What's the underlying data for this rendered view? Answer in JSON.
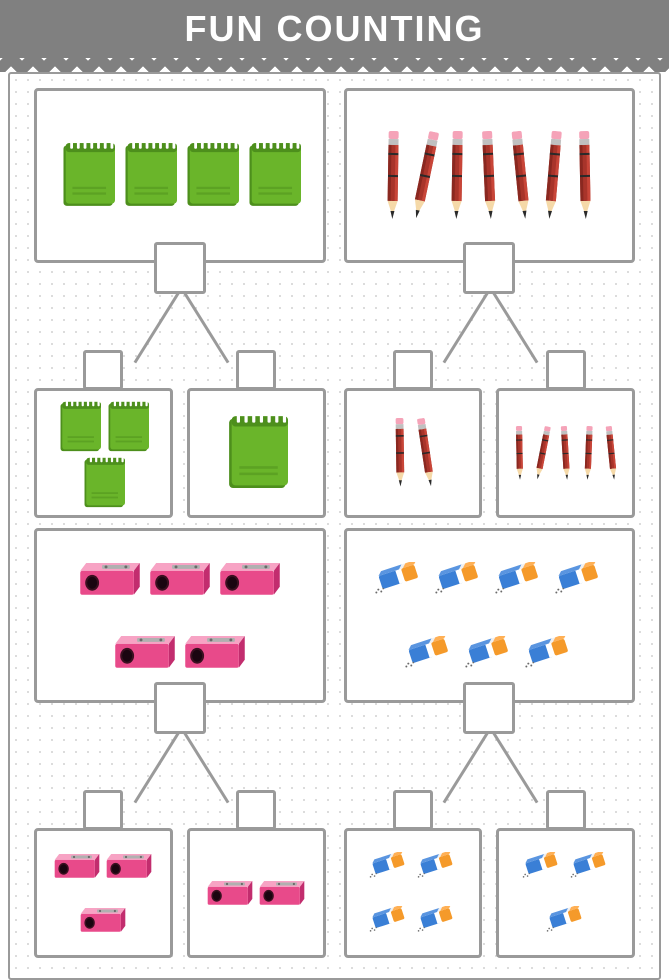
{
  "title": "FUN COUNTING",
  "colors": {
    "header_bg": "#808080",
    "header_text": "#ffffff",
    "border": "#9a9a9a",
    "page_bg": "#ffffff",
    "dot": "#d0d0d0",
    "notebook_body": "#6ab52a",
    "notebook_dark": "#4d8f1c",
    "notebook_spiral": "#ffffff",
    "pencil_body": "#a8342a",
    "pencil_band": "#2a2a2a",
    "pencil_ferrule": "#c0c0c0",
    "pencil_eraser": "#f5a3b8",
    "pencil_wood": "#f5d9a8",
    "pencil_lead": "#2a2a2a",
    "sharpener_body": "#e84a8a",
    "sharpener_top": "#f7a3c4",
    "sharpener_dark": "#c22d6e",
    "sharpener_blade": "#b0b0b0",
    "eraser_blue": "#3a7fd6",
    "eraser_orange": "#f59a2a",
    "eraser_white": "#ffffff",
    "eraser_shavings": "#6a6a6a"
  },
  "puzzles": [
    {
      "item_type": "notebook",
      "main_count": 4,
      "main_size": 56,
      "subs": [
        {
          "count": 3,
          "size": 44
        },
        {
          "count": 1,
          "size": 64
        }
      ]
    },
    {
      "item_type": "pencil",
      "main_count": 7,
      "main_size": 90,
      "subs": [
        {
          "count": 2,
          "size": 70
        },
        {
          "count": 5,
          "size": 55
        }
      ]
    },
    {
      "item_type": "sharpener",
      "main_count": 5,
      "main_size": 64,
      "subs": [
        {
          "count": 3,
          "size": 48
        },
        {
          "count": 2,
          "size": 48
        }
      ]
    },
    {
      "item_type": "eraser",
      "main_count": 7,
      "main_size": 54,
      "subs": [
        {
          "count": 4,
          "size": 44
        },
        {
          "count": 3,
          "size": 44
        }
      ]
    }
  ]
}
